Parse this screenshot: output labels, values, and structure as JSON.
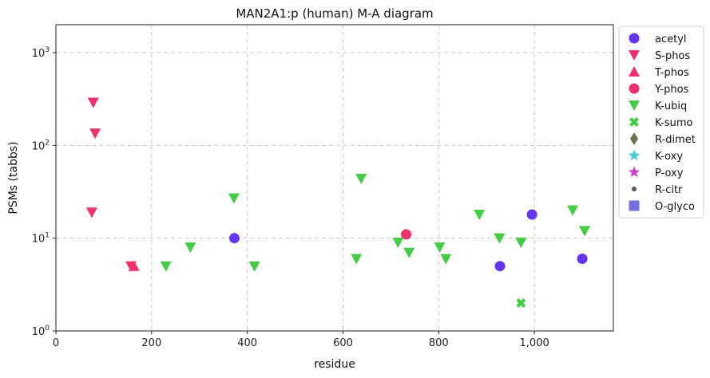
{
  "chart_data": {
    "type": "scatter",
    "title": "MAN2A1:p (human) M-A diagram",
    "xlabel": "residue",
    "ylabel": "PSMs (tabbs)",
    "xlim": [
      0,
      1165
    ],
    "ylim": [
      1,
      2000
    ],
    "y_scale": "log",
    "grid": true,
    "legend_position": "right-outside",
    "x_ticks": [
      {
        "value": 0,
        "label": "0"
      },
      {
        "value": 200,
        "label": "200"
      },
      {
        "value": 400,
        "label": "400"
      },
      {
        "value": 600,
        "label": "600"
      },
      {
        "value": 800,
        "label": "800"
      },
      {
        "value": 1000,
        "label": "1,000"
      }
    ],
    "y_ticks": [
      {
        "value": 1,
        "base": "10",
        "exp": "0"
      },
      {
        "value": 10,
        "base": "10",
        "exp": "1"
      },
      {
        "value": 100,
        "base": "10",
        "exp": "2"
      },
      {
        "value": 1000,
        "base": "10",
        "exp": "3"
      }
    ],
    "series": [
      {
        "name": "acetyl",
        "color": "#6633ee",
        "marker": "circle",
        "points": [
          [
            373,
            10
          ],
          [
            928,
            5
          ],
          [
            995,
            18
          ],
          [
            1100,
            6
          ]
        ]
      },
      {
        "name": "S-phos",
        "color": "#f0306a",
        "marker": "triangle-down",
        "points": [
          [
            78,
            290
          ],
          [
            82,
            135
          ],
          [
            75,
            19
          ],
          [
            157,
            5
          ]
        ]
      },
      {
        "name": "T-phos",
        "color": "#f0306a",
        "marker": "triangle-up",
        "points": [
          [
            163,
            5
          ]
        ]
      },
      {
        "name": "Y-phos",
        "color": "#f0306a",
        "marker": "circle",
        "points": [
          [
            732,
            11
          ]
        ]
      },
      {
        "name": "K-ubiq",
        "color": "#44cc44",
        "marker": "triangle-down",
        "points": [
          [
            230,
            5
          ],
          [
            281,
            8
          ],
          [
            372,
            27
          ],
          [
            415,
            5
          ],
          [
            628,
            6
          ],
          [
            638,
            44
          ],
          [
            715,
            9
          ],
          [
            738,
            7
          ],
          [
            802,
            8
          ],
          [
            815,
            6
          ],
          [
            885,
            18
          ],
          [
            927,
            10
          ],
          [
            972,
            9
          ],
          [
            1080,
            20
          ],
          [
            1105,
            12
          ]
        ]
      },
      {
        "name": "K-sumo",
        "color": "#44cc44",
        "marker": "x",
        "points": [
          [
            972,
            2
          ]
        ]
      },
      {
        "name": "R-dimet",
        "color": "#707050",
        "marker": "diamond",
        "points": []
      },
      {
        "name": "K-oxy",
        "color": "#44ccdd",
        "marker": "star",
        "points": []
      },
      {
        "name": "P-oxy",
        "color": "#cc44cc",
        "marker": "star",
        "points": []
      },
      {
        "name": "R-citr",
        "color": "#555555",
        "marker": "small-circle",
        "points": []
      },
      {
        "name": "O-glyco",
        "color": "#7070e0",
        "marker": "square",
        "points": []
      }
    ]
  }
}
